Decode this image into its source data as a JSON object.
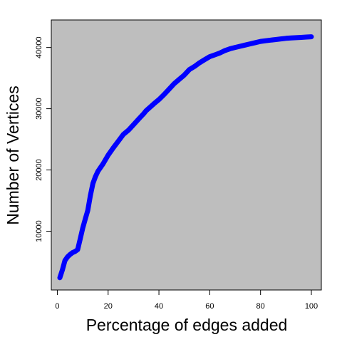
{
  "chart_data": {
    "type": "line",
    "xlabel": "Percentage of edges added",
    "ylabel": "Number of Vertices",
    "xlim": [
      1,
      100
    ],
    "ylim": [
      1800,
      43100
    ],
    "x_ticks": [
      0,
      20,
      40,
      60,
      80,
      100
    ],
    "y_ticks": [
      10000,
      20000,
      30000,
      40000
    ],
    "grid": false,
    "colors": {
      "panel": "#bebebe",
      "series": "#0000ff"
    },
    "series": [
      {
        "x": [
          1,
          2,
          3,
          4,
          5,
          6,
          7,
          8,
          9,
          10,
          11,
          12,
          13,
          14,
          15,
          16,
          18,
          20,
          22,
          24,
          26,
          28,
          30,
          32,
          34,
          35,
          38,
          40,
          42,
          44,
          46,
          48,
          50,
          52,
          54,
          56,
          58,
          60,
          62,
          64,
          66,
          68,
          70,
          72,
          74,
          76,
          78,
          80,
          82,
          84,
          86,
          88,
          90,
          92,
          94,
          96,
          98,
          100
        ],
        "y": [
          2400,
          3700,
          5200,
          5800,
          6200,
          6500,
          6700,
          7000,
          8700,
          10500,
          12000,
          13400,
          15800,
          17800,
          18900,
          19800,
          21000,
          22400,
          23600,
          24700,
          25800,
          26500,
          27400,
          28300,
          29200,
          29700,
          30800,
          31500,
          32300,
          33200,
          34100,
          34800,
          35500,
          36400,
          36900,
          37500,
          38000,
          38500,
          38800,
          39100,
          39500,
          39800,
          40000,
          40200,
          40400,
          40600,
          40800,
          41000,
          41100,
          41200,
          41300,
          41400,
          41500,
          41550,
          41600,
          41650,
          41700,
          41750
        ]
      }
    ]
  }
}
